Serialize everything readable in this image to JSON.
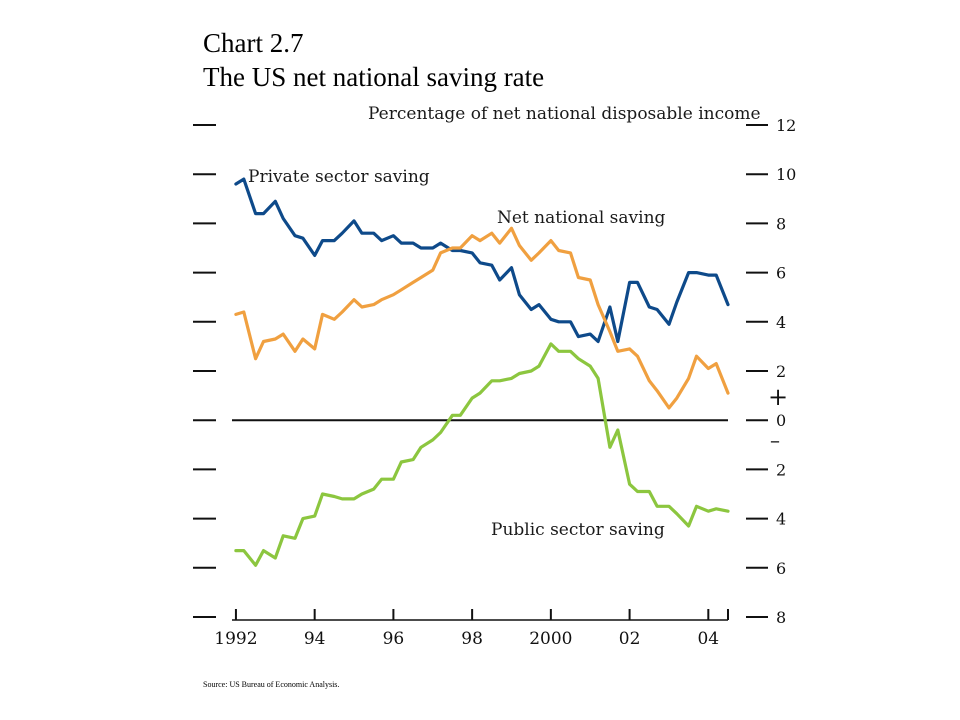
{
  "chart_data": {
    "type": "line",
    "title": "Chart 2.7",
    "subtitle": "The US net national saving rate",
    "unit_label": "Percentage of net national disposable income",
    "source": "Source: US Bureau of Economic Analysis.",
    "x_ticks": [
      {
        "value": 1992,
        "label": "1992"
      },
      {
        "value": 1994,
        "label": "94"
      },
      {
        "value": 1996,
        "label": "96"
      },
      {
        "value": 1998,
        "label": "98"
      },
      {
        "value": 2000,
        "label": "2000"
      },
      {
        "value": 2002,
        "label": "02"
      },
      {
        "value": 2004,
        "label": "04"
      }
    ],
    "xlim": [
      1991.9,
      2004.5
    ],
    "ylim": [
      -8,
      12
    ],
    "y_ticks": [
      {
        "value": 12,
        "label": "12"
      },
      {
        "value": 10,
        "label": "10"
      },
      {
        "value": 8,
        "label": "8"
      },
      {
        "value": 6,
        "label": "6"
      },
      {
        "value": 4,
        "label": "4"
      },
      {
        "value": 2,
        "label": "2"
      },
      {
        "value": 0,
        "label": "0"
      },
      {
        "value": -2,
        "label": "2"
      },
      {
        "value": -4,
        "label": "4"
      },
      {
        "value": -6,
        "label": "6"
      },
      {
        "value": -8,
        "label": "8"
      }
    ],
    "sign_markers": {
      "plus": "+",
      "minus": "–"
    },
    "zero_line": 0,
    "series": [
      {
        "name": "Private sector saving",
        "color": "#0e4a8a",
        "x": [
          1992.0,
          1992.2,
          1992.5,
          1992.7,
          1993.0,
          1993.2,
          1993.5,
          1993.7,
          1994.0,
          1994.2,
          1994.5,
          1994.7,
          1995.0,
          1995.2,
          1995.5,
          1995.7,
          1996.0,
          1996.2,
          1996.5,
          1996.7,
          1997.0,
          1997.2,
          1997.5,
          1997.7,
          1998.0,
          1998.2,
          1998.5,
          1998.7,
          1999.0,
          1999.2,
          1999.5,
          1999.7,
          2000.0,
          2000.2,
          2000.5,
          2000.7,
          2001.0,
          2001.2,
          2001.5,
          2001.7,
          2002.0,
          2002.2,
          2002.5,
          2002.7,
          2003.0,
          2003.2,
          2003.5,
          2003.7,
          2004.0,
          2004.2,
          2004.5
        ],
        "values": [
          9.6,
          9.8,
          8.4,
          8.4,
          8.9,
          8.2,
          7.5,
          7.4,
          6.7,
          7.3,
          7.3,
          7.6,
          8.1,
          7.6,
          7.6,
          7.3,
          7.5,
          7.2,
          7.2,
          7.0,
          7.0,
          7.2,
          6.9,
          6.9,
          6.8,
          6.4,
          6.3,
          5.7,
          6.2,
          5.1,
          4.5,
          4.7,
          4.1,
          4.0,
          4.0,
          3.4,
          3.5,
          3.2,
          4.6,
          3.2,
          5.6,
          5.6,
          4.6,
          4.5,
          3.9,
          4.8,
          6.0,
          6.0,
          5.9,
          5.9,
          4.7
        ]
      },
      {
        "name": "Net national saving",
        "color": "#f0a040",
        "x": [
          1992.0,
          1992.2,
          1992.5,
          1992.7,
          1993.0,
          1993.2,
          1993.5,
          1993.7,
          1994.0,
          1994.2,
          1994.5,
          1994.7,
          1995.0,
          1995.2,
          1995.5,
          1995.7,
          1996.0,
          1996.2,
          1996.5,
          1996.7,
          1997.0,
          1997.2,
          1997.5,
          1997.7,
          1998.0,
          1998.2,
          1998.5,
          1998.7,
          1999.0,
          1999.2,
          1999.5,
          1999.7,
          2000.0,
          2000.2,
          2000.5,
          2000.7,
          2001.0,
          2001.2,
          2001.5,
          2001.7,
          2002.0,
          2002.2,
          2002.5,
          2002.7,
          2003.0,
          2003.2,
          2003.5,
          2003.7,
          2004.0,
          2004.2,
          2004.5
        ],
        "values": [
          4.3,
          4.4,
          2.5,
          3.2,
          3.3,
          3.5,
          2.8,
          3.3,
          2.9,
          4.3,
          4.1,
          4.4,
          4.9,
          4.6,
          4.7,
          4.9,
          5.1,
          5.3,
          5.6,
          5.8,
          6.1,
          6.8,
          7.0,
          7.0,
          7.5,
          7.3,
          7.6,
          7.2,
          7.8,
          7.1,
          6.5,
          6.8,
          7.3,
          6.9,
          6.8,
          5.8,
          5.7,
          4.7,
          3.6,
          2.8,
          2.9,
          2.6,
          1.6,
          1.2,
          0.5,
          0.9,
          1.7,
          2.6,
          2.1,
          2.3,
          1.1
        ]
      },
      {
        "name": "Public sector saving",
        "color": "#8cc63f",
        "x": [
          1992.0,
          1992.2,
          1992.5,
          1992.7,
          1993.0,
          1993.2,
          1993.5,
          1993.7,
          1994.0,
          1994.2,
          1994.5,
          1994.7,
          1995.0,
          1995.2,
          1995.5,
          1995.7,
          1996.0,
          1996.2,
          1996.5,
          1996.7,
          1997.0,
          1997.2,
          1997.5,
          1997.7,
          1998.0,
          1998.2,
          1998.5,
          1998.7,
          1999.0,
          1999.2,
          1999.5,
          1999.7,
          2000.0,
          2000.2,
          2000.5,
          2000.7,
          2001.0,
          2001.2,
          2001.5,
          2001.7,
          2002.0,
          2002.2,
          2002.5,
          2002.7,
          2003.0,
          2003.2,
          2003.5,
          2003.7,
          2004.0,
          2004.2,
          2004.5
        ],
        "values": [
          -5.3,
          -5.3,
          -5.9,
          -5.3,
          -5.6,
          -4.7,
          -4.8,
          -4.0,
          -3.9,
          -3.0,
          -3.1,
          -3.2,
          -3.2,
          -3.0,
          -2.8,
          -2.4,
          -2.4,
          -1.7,
          -1.6,
          -1.1,
          -0.8,
          -0.5,
          0.2,
          0.2,
          0.9,
          1.1,
          1.6,
          1.6,
          1.7,
          1.9,
          2.0,
          2.2,
          3.1,
          2.8,
          2.8,
          2.5,
          2.2,
          1.7,
          -1.1,
          -0.4,
          -2.6,
          -2.9,
          -2.9,
          -3.5,
          -3.5,
          -3.8,
          -4.3,
          -3.5,
          -3.7,
          -3.6,
          -3.7
        ]
      }
    ],
    "annotations": [
      {
        "text": "Private sector saving",
        "color": "#0e4a8a"
      },
      {
        "text": "Net national saving",
        "color": "#f0a040"
      },
      {
        "text": "Public sector saving",
        "color": "#8cc63f"
      }
    ]
  }
}
